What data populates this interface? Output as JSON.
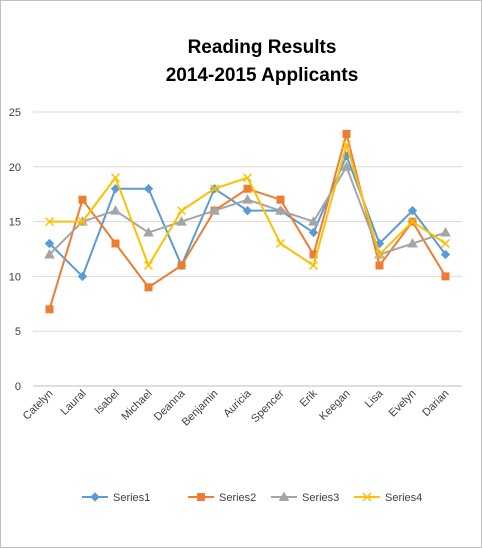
{
  "chart_data": {
    "type": "line",
    "title_lines": [
      "Reading Results",
      "2014-2015 Applicants"
    ],
    "categories": [
      "Catelyn",
      "Laural",
      "Isabel",
      "Michael",
      "Deanna",
      "Benjamin",
      "Auricia",
      "Spencer",
      "Erik",
      "Keegan",
      "Lisa",
      "Evelyn",
      "Darian"
    ],
    "ylim": [
      0,
      25
    ],
    "yticks": [
      0,
      5,
      10,
      15,
      20,
      25
    ],
    "grid": true,
    "legend_position": "bottom",
    "series": [
      {
        "name": "Series1",
        "color": "#5b9bd5",
        "marker": "diamond",
        "values": [
          13,
          10,
          18,
          18,
          11,
          18,
          16,
          16,
          14,
          21,
          13,
          16,
          12
        ]
      },
      {
        "name": "Series2",
        "color": "#ed7d31",
        "marker": "square",
        "values": [
          7,
          17,
          13,
          9,
          11,
          16,
          18,
          17,
          12,
          23,
          11,
          15,
          10
        ]
      },
      {
        "name": "Series3",
        "color": "#a5a5a5",
        "marker": "triangle",
        "values": [
          12,
          15,
          16,
          14,
          15,
          16,
          17,
          16,
          15,
          20,
          12,
          13,
          14
        ]
      },
      {
        "name": "Series4",
        "color": "#ffc000",
        "marker": "x",
        "values": [
          15,
          15,
          19,
          11,
          16,
          18,
          19,
          13,
          11,
          22,
          12,
          15,
          13
        ]
      }
    ]
  }
}
